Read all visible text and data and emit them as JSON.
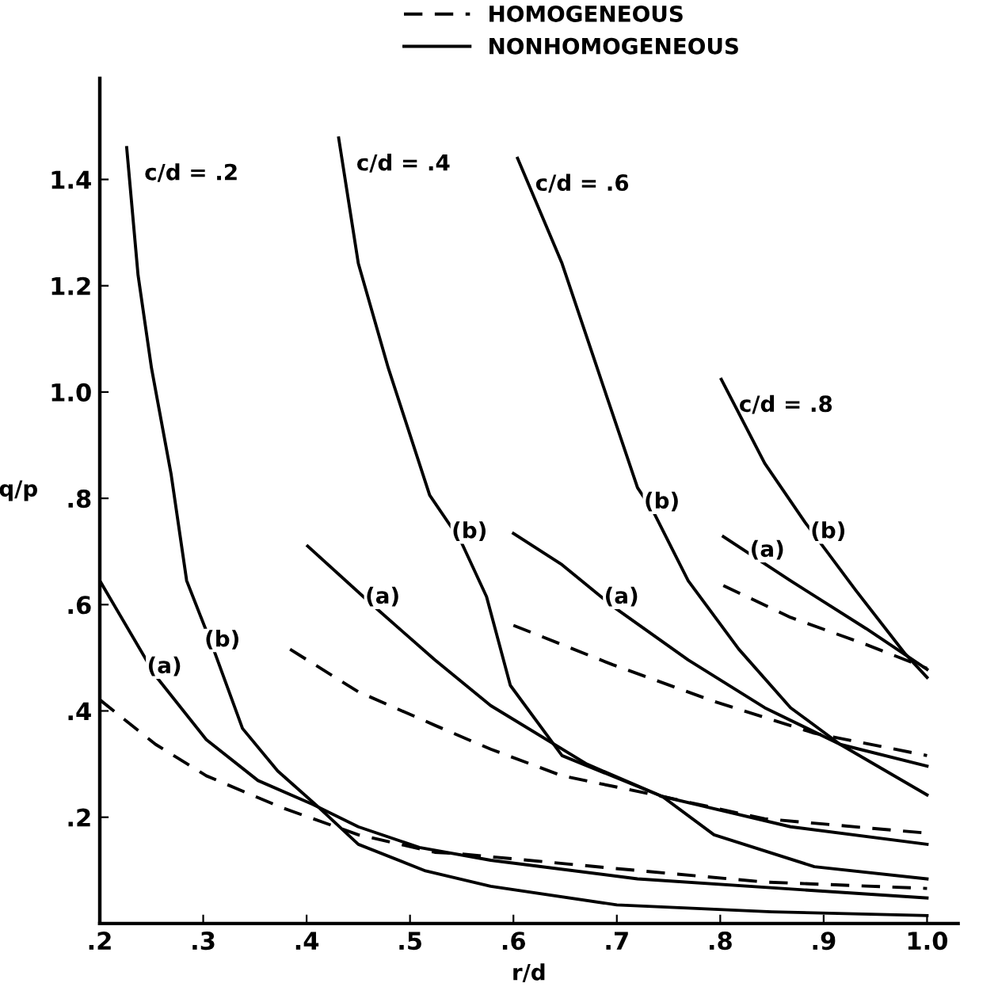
{
  "chart_data": {
    "type": "line",
    "xlabel": "r/d",
    "ylabel": "q/p",
    "xlim": [
      0.2,
      1.03
    ],
    "ylim": [
      0,
      1.59
    ],
    "xticks": [
      {
        "value": 0.2,
        "label": ".2"
      },
      {
        "value": 0.3,
        "label": ".3"
      },
      {
        "value": 0.4,
        "label": ".4"
      },
      {
        "value": 0.5,
        "label": ".5"
      },
      {
        "value": 0.6,
        "label": ".6"
      },
      {
        "value": 0.7,
        "label": ".7"
      },
      {
        "value": 0.8,
        "label": ".8"
      },
      {
        "value": 0.9,
        "label": ".9"
      },
      {
        "value": 1.0,
        "label": "1.0"
      }
    ],
    "yticks": [
      {
        "value": 0.2,
        "label": ".2"
      },
      {
        "value": 0.4,
        "label": ".4"
      },
      {
        "value": 0.6,
        "label": ".6"
      },
      {
        "value": 0.8,
        "label": ".8"
      },
      {
        "value": 1.0,
        "label": "1.0"
      },
      {
        "value": 1.2,
        "label": "1.2"
      },
      {
        "value": 1.4,
        "label": "1.4"
      }
    ],
    "grid": false,
    "legend": "top",
    "marker": "none",
    "series": [
      {
        "name": "HOMOGENEOUS",
        "line_style": "dashed",
        "color": "#000000",
        "x": [
          0.2,
          0.254,
          0.303,
          0.376,
          0.45,
          0.524,
          0.549,
          0.696,
          0.843,
          1.0
        ],
        "values": [
          0.421,
          0.337,
          0.278,
          0.218,
          0.167,
          0.134,
          0.131,
          0.104,
          0.078,
          0.066
        ]
      },
      {
        "name": "NONHOMOGENEOUS",
        "line_style": "solid",
        "color": "#000000",
        "x": [
          0.2,
          0.254,
          0.303,
          0.353,
          0.406,
          0.45,
          0.509,
          0.578,
          0.72,
          1.0
        ],
        "values": [
          0.645,
          0.466,
          0.346,
          0.269,
          0.224,
          0.182,
          0.143,
          0.119,
          0.084,
          0.048
        ]
      },
      {
        "line_style": "solid",
        "color": "#000000",
        "x": [
          0.226,
          0.237,
          0.25,
          0.269,
          0.284,
          0.31,
          0.338,
          0.372,
          0.412,
          0.45,
          0.515,
          0.578,
          0.7,
          0.85,
          1.0
        ],
        "values": [
          1.46,
          1.22,
          1.045,
          0.845,
          0.645,
          0.516,
          0.367,
          0.287,
          0.218,
          0.149,
          0.099,
          0.07,
          0.035,
          0.022,
          0.015
        ]
      },
      {
        "line_style": "dashed",
        "color": "#000000",
        "x": [
          0.384,
          0.45,
          0.524,
          0.578,
          0.647,
          0.744,
          0.843,
          1.0
        ],
        "values": [
          0.516,
          0.436,
          0.373,
          0.328,
          0.278,
          0.239,
          0.197,
          0.17
        ]
      },
      {
        "line_style": "solid",
        "color": "#000000",
        "x": [
          0.401,
          0.465,
          0.524,
          0.578,
          0.671,
          0.744,
          0.868,
          1.0
        ],
        "values": [
          0.71,
          0.597,
          0.496,
          0.41,
          0.3,
          0.239,
          0.182,
          0.149
        ]
      },
      {
        "line_style": "solid",
        "color": "#000000",
        "x": [
          0.431,
          0.45,
          0.479,
          0.519,
          0.549,
          0.574,
          0.597,
          0.647,
          0.744,
          0.794,
          0.891,
          1.0
        ],
        "values": [
          1.478,
          1.242,
          1.045,
          0.806,
          0.72,
          0.615,
          0.448,
          0.316,
          0.239,
          0.167,
          0.107,
          0.084
        ]
      },
      {
        "line_style": "dashed",
        "color": "#000000",
        "x": [
          0.6,
          0.696,
          0.794,
          0.891,
          1.0
        ],
        "values": [
          0.561,
          0.487,
          0.418,
          0.358,
          0.316
        ]
      },
      {
        "line_style": "solid",
        "color": "#000000",
        "x": [
          0.6,
          0.647,
          0.696,
          0.769,
          0.843,
          0.916,
          1.0
        ],
        "values": [
          0.734,
          0.675,
          0.597,
          0.496,
          0.406,
          0.337,
          0.296
        ]
      },
      {
        "line_style": "solid",
        "color": "#000000",
        "x": [
          0.604,
          0.647,
          0.681,
          0.72,
          0.735,
          0.769,
          0.818,
          0.868,
          0.916,
          1.0
        ],
        "values": [
          1.44,
          1.242,
          1.045,
          0.82,
          0.776,
          0.645,
          0.516,
          0.406,
          0.337,
          0.242
        ]
      },
      {
        "line_style": "dashed",
        "color": "#000000",
        "x": [
          0.803,
          0.868,
          0.941,
          1.0
        ],
        "values": [
          0.636,
          0.576,
          0.525,
          0.48
        ]
      },
      {
        "line_style": "solid",
        "color": "#000000",
        "x": [
          0.803,
          0.868,
          0.941,
          1.0
        ],
        "values": [
          0.728,
          0.645,
          0.555,
          0.478
        ]
      },
      {
        "line_style": "solid",
        "color": "#000000",
        "x": [
          0.801,
          0.843,
          0.882,
          0.931,
          0.979,
          1.0
        ],
        "values": [
          1.024,
          0.866,
          0.755,
          0.627,
          0.507,
          0.463
        ]
      }
    ],
    "annotations": [
      {
        "text": "c/d = .2",
        "x": 0.226,
        "y": 1.46
      },
      {
        "text": "c/d = .4",
        "x": 0.431,
        "y": 1.478
      },
      {
        "text": "c/d = .6",
        "x": 0.604,
        "y": 1.44
      },
      {
        "text": "c/d = .8",
        "x": 0.801,
        "y": 1.024
      },
      {
        "text": "(a)",
        "x": 0.254,
        "y": 0.466
      },
      {
        "text": "(b)",
        "x": 0.31,
        "y": 0.516
      },
      {
        "text": "(a)",
        "x": 0.465,
        "y": 0.597
      },
      {
        "text": "(b)",
        "x": 0.549,
        "y": 0.72
      },
      {
        "text": "(a)",
        "x": 0.696,
        "y": 0.597
      },
      {
        "text": "(b)",
        "x": 0.735,
        "y": 0.776
      },
      {
        "text": "(a)",
        "x": 0.837,
        "y": 0.685
      },
      {
        "text": "(b)",
        "x": 0.896,
        "y": 0.72
      }
    ]
  }
}
